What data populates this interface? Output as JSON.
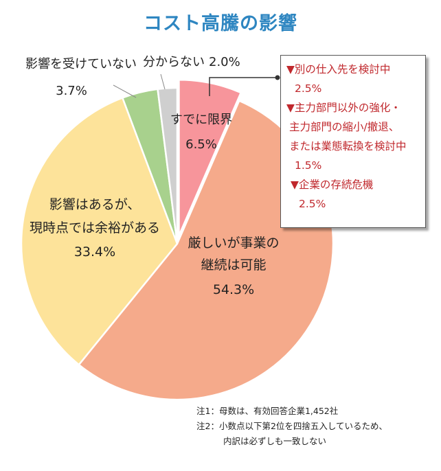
{
  "title": "コスト高騰の影響",
  "chart_data": {
    "type": "pie",
    "title": "コスト高騰の影響",
    "slices": [
      {
        "label": "すでに限界",
        "value": 6.5,
        "pct_text": "6.5%",
        "color": "#f7959b"
      },
      {
        "label": "厳しいが事業の継続は可能",
        "lines": [
          "厳しいが事業の",
          "継続は可能"
        ],
        "value": 54.3,
        "pct_text": "54.3%",
        "color": "#f5aa8b"
      },
      {
        "label": "影響はあるが、現時点では余裕がある",
        "lines": [
          "影響はあるが、",
          "現時点では余裕がある"
        ],
        "value": 33.4,
        "pct_text": "33.4%",
        "color": "#fde39a"
      },
      {
        "label": "影響を受けていない",
        "value": 3.7,
        "pct_text": "3.7%",
        "color": "#a8d18d"
      },
      {
        "label": "分からない",
        "value": 2.0,
        "pct_text": "2.0%",
        "color": "#cfcfcf"
      }
    ]
  },
  "callout": {
    "items": [
      {
        "lines": [
          "▼別の仕入先を検討中"
        ],
        "pct": "2.5%"
      },
      {
        "lines": [
          "▼主力部門以外の強化・",
          "主力部門の縮小/撤退、",
          "または業態転換を検討中"
        ],
        "pct": "1.5%"
      },
      {
        "lines": [
          "▼企業の存続危機"
        ],
        "pct": "2.5%"
      }
    ]
  },
  "notes": {
    "note1": "注1：母数は、有効回答企業1,452社",
    "note2a": "注2：小数点以下第2位を四捨五入しているため、",
    "note2b": "内訳は必ずしも一致しない"
  }
}
